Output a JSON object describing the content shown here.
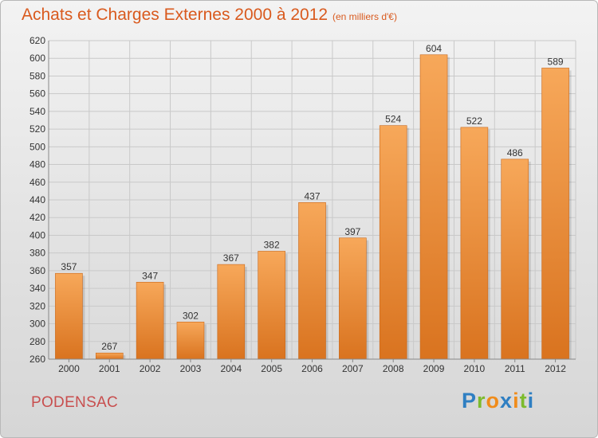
{
  "title": "Achats et Charges Externes 2000 à 2012",
  "subtitle": "(en milliers d'€)",
  "commune": "PODENSAC",
  "logo": {
    "letters": [
      {
        "ch": "P",
        "color": "#2f7fc2"
      },
      {
        "ch": "r",
        "color": "#7dbb2d"
      },
      {
        "ch": "o",
        "color": "#f08c1a"
      },
      {
        "ch": "x",
        "color": "#2f7fc2"
      },
      {
        "ch": "i",
        "color": "#f08c1a"
      },
      {
        "ch": "t",
        "color": "#7dbb2d"
      },
      {
        "ch": "i",
        "color": "#2f7fc2"
      }
    ]
  },
  "colors": {
    "bar_top": "#f7a85a",
    "bar_bottom": "#d9731f",
    "grid": "#c9c9c9",
    "axis_text": "#333333"
  },
  "chart_data": {
    "type": "bar",
    "categories": [
      "2000",
      "2001",
      "2002",
      "2003",
      "2004",
      "2005",
      "2006",
      "2007",
      "2008",
      "2009",
      "2010",
      "2011",
      "2012"
    ],
    "values": [
      357,
      267,
      347,
      302,
      367,
      382,
      437,
      397,
      524,
      604,
      522,
      486,
      589
    ],
    "ylim": [
      260,
      620
    ],
    "yticks": [
      260,
      280,
      300,
      320,
      340,
      360,
      380,
      400,
      420,
      440,
      460,
      480,
      500,
      520,
      540,
      560,
      580,
      600,
      620
    ],
    "grid": true,
    "data_labels": true
  }
}
